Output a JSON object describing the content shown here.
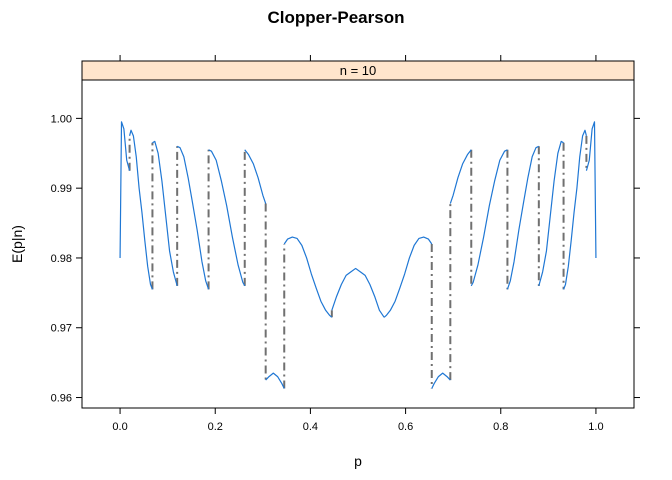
{
  "chart_data": {
    "type": "line",
    "title": "Clopper-Pearson",
    "strip_label": "n = 10",
    "xlabel": "p",
    "ylabel": "E(p|n)",
    "xlim": [
      -0.08,
      1.08
    ],
    "ylim": [
      0.9585,
      1.0055
    ],
    "xticks": [
      0.0,
      0.2,
      0.4,
      0.6,
      0.8,
      1.0
    ],
    "xtick_labels": [
      "0.0",
      "0.2",
      "0.4",
      "0.6",
      "0.8",
      "1.0"
    ],
    "yticks": [
      0.96,
      0.97,
      0.98,
      0.99,
      1.0
    ],
    "ytick_labels": [
      "0.96",
      "0.97",
      "0.98",
      "0.99",
      "1.00"
    ],
    "grid": false,
    "colors": {
      "curve": "#1f77d4",
      "jump": "#707070",
      "strip_fill": "#ffe5cc"
    },
    "series": [
      {
        "segments": [
          {
            "x": [
              0.0,
              0.003,
              0.008,
              0.014,
              0.02
            ],
            "y": [
              0.98,
              0.9995,
              0.9985,
              0.994,
              0.9925
            ]
          },
          {
            "x": [
              0.02,
              0.023,
              0.028,
              0.034,
              0.04,
              0.046,
              0.052,
              0.058,
              0.064,
              0.068
            ],
            "y": [
              0.9975,
              0.9983,
              0.9975,
              0.9945,
              0.99,
              0.9865,
              0.9825,
              0.9788,
              0.9762,
              0.9755
            ]
          },
          {
            "x": [
              0.068,
              0.073,
              0.08,
              0.088,
              0.096,
              0.104,
              0.112,
              0.12
            ],
            "y": [
              0.9965,
              0.9967,
              0.995,
              0.991,
              0.986,
              0.981,
              0.978,
              0.976
            ]
          },
          {
            "x": [
              0.12,
              0.126,
              0.134,
              0.143,
              0.152,
              0.162,
              0.172,
              0.18,
              0.186
            ],
            "y": [
              0.996,
              0.9958,
              0.9945,
              0.9915,
              0.988,
              0.984,
              0.9795,
              0.9767,
              0.9755
            ]
          },
          {
            "x": [
              0.186,
              0.192,
              0.202,
              0.213,
              0.224,
              0.236,
              0.248,
              0.258,
              0.262
            ],
            "y": [
              0.9955,
              0.9953,
              0.994,
              0.991,
              0.9875,
              0.983,
              0.979,
              0.9765,
              0.976
            ]
          },
          {
            "x": [
              0.262,
              0.27,
              0.28,
              0.29,
              0.3,
              0.306
            ],
            "y": [
              0.9955,
              0.9948,
              0.9935,
              0.9915,
              0.989,
              0.9878
            ]
          },
          {
            "x": [
              0.306,
              0.313,
              0.322,
              0.331,
              0.34,
              0.345
            ],
            "y": [
              0.9625,
              0.963,
              0.9635,
              0.963,
              0.962,
              0.9613
            ]
          },
          {
            "x": [
              0.345,
              0.352,
              0.362,
              0.372,
              0.382,
              0.392,
              0.402,
              0.412,
              0.422,
              0.432,
              0.44,
              0.445
            ],
            "y": [
              0.982,
              0.9827,
              0.983,
              0.9828,
              0.9818,
              0.98,
              0.9777,
              0.9757,
              0.9738,
              0.9725,
              0.9718,
              0.9715
            ]
          },
          {
            "x": [
              0.445,
              0.455,
              0.465,
              0.475,
              0.485,
              0.495,
              0.505,
              0.515,
              0.525,
              0.535,
              0.545,
              0.555
            ],
            "y": [
              0.9725,
              0.9745,
              0.9762,
              0.9775,
              0.978,
              0.9785,
              0.978,
              0.9775,
              0.9762,
              0.9745,
              0.9725,
              0.9715
            ]
          },
          {
            "x": [
              0.555,
              0.56,
              0.568,
              0.578,
              0.588,
              0.598,
              0.608,
              0.618,
              0.628,
              0.638,
              0.648,
              0.655
            ],
            "y": [
              0.9715,
              0.9718,
              0.9725,
              0.9738,
              0.9757,
              0.9777,
              0.98,
              0.9818,
              0.9828,
              0.983,
              0.9827,
              0.982
            ]
          },
          {
            "x": [
              0.655,
              0.66,
              0.669,
              0.678,
              0.687,
              0.694
            ],
            "y": [
              0.9613,
              0.962,
              0.963,
              0.9635,
              0.963,
              0.9625
            ]
          },
          {
            "x": [
              0.694,
              0.7,
              0.71,
              0.72,
              0.73,
              0.738
            ],
            "y": [
              0.9878,
              0.989,
              0.9915,
              0.9935,
              0.9948,
              0.9955
            ]
          },
          {
            "x": [
              0.738,
              0.742,
              0.752,
              0.764,
              0.776,
              0.787,
              0.798,
              0.808,
              0.814
            ],
            "y": [
              0.976,
              0.9765,
              0.979,
              0.983,
              0.9875,
              0.991,
              0.994,
              0.9953,
              0.9955
            ]
          },
          {
            "x": [
              0.814,
              0.82,
              0.828,
              0.838,
              0.848,
              0.857,
              0.866,
              0.874,
              0.88
            ],
            "y": [
              0.9755,
              0.9767,
              0.9795,
              0.984,
              0.988,
              0.9915,
              0.9945,
              0.9958,
              0.996
            ]
          },
          {
            "x": [
              0.88,
              0.888,
              0.896,
              0.904,
              0.912,
              0.92,
              0.927,
              0.932
            ],
            "y": [
              0.976,
              0.978,
              0.981,
              0.986,
              0.991,
              0.995,
              0.9967,
              0.9965
            ]
          },
          {
            "x": [
              0.932,
              0.936,
              0.942,
              0.948,
              0.954,
              0.96,
              0.966,
              0.972,
              0.977,
              0.98
            ],
            "y": [
              0.9755,
              0.9762,
              0.9788,
              0.9825,
              0.9865,
              0.99,
              0.9945,
              0.9975,
              0.9983,
              0.9975
            ]
          },
          {
            "x": [
              0.98,
              0.986,
              0.992,
              0.997,
              1.0
            ],
            "y": [
              0.9925,
              0.994,
              0.9985,
              0.9995,
              0.98
            ]
          }
        ]
      }
    ]
  }
}
